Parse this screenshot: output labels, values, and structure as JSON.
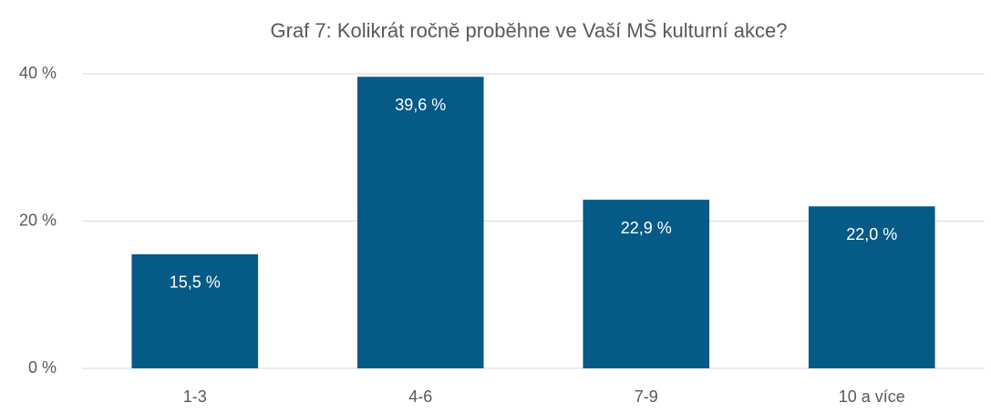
{
  "chart_data": {
    "type": "bar",
    "title": "Graf 7: Kolikrát ročně proběhne ve Vaší MŠ kulturní akce?",
    "categories": [
      "1-3",
      "4-6",
      "7-9",
      "10 a více"
    ],
    "values": [
      15.5,
      39.6,
      22.9,
      22.0
    ],
    "value_labels": [
      "15,5 %",
      "39,6 %",
      "22,9 %",
      "22,0 %"
    ],
    "color": "#065a87",
    "ylim": [
      0,
      40
    ],
    "yticks": [
      {
        "value": 0,
        "label": "0 %"
      },
      {
        "value": 20,
        "label": "20 %"
      },
      {
        "value": 40,
        "label": "40 %"
      }
    ],
    "grid": true
  }
}
